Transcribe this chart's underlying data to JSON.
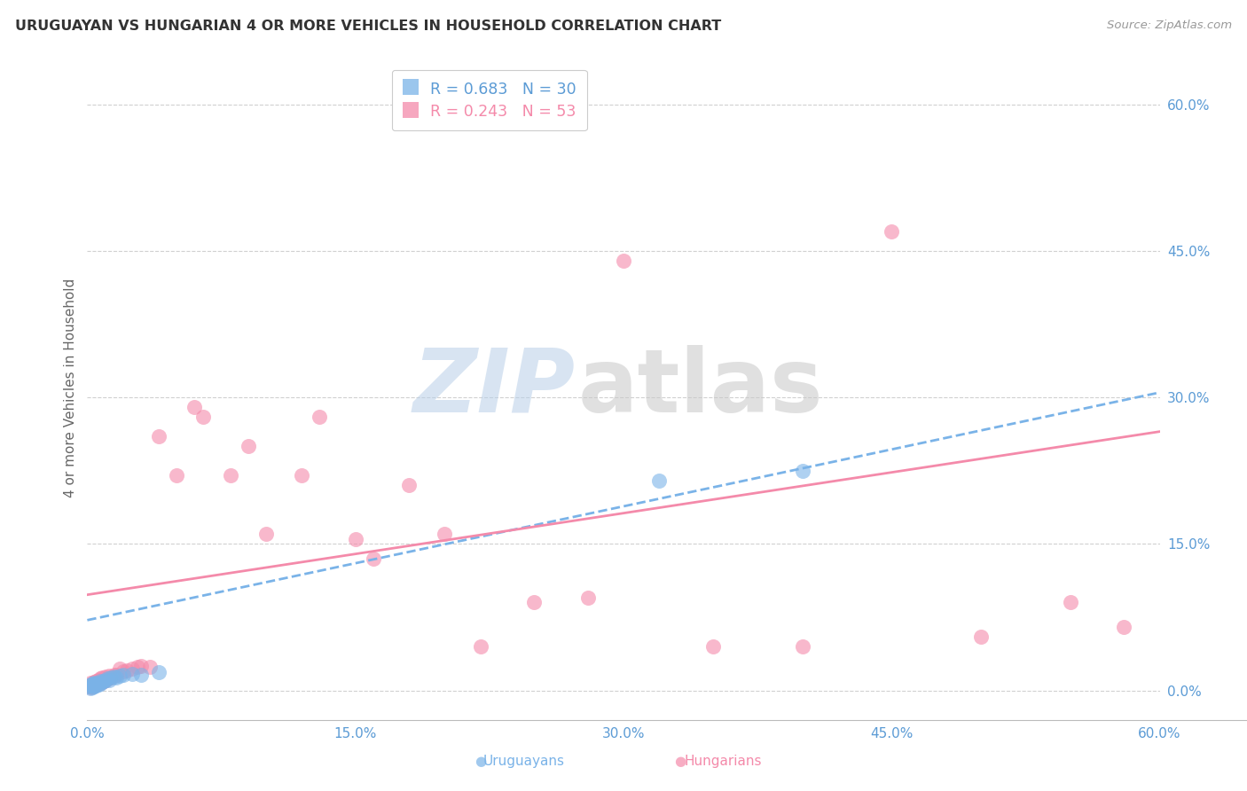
{
  "title": "URUGUAYAN VS HUNGARIAN 4 OR MORE VEHICLES IN HOUSEHOLD CORRELATION CHART",
  "source": "Source: ZipAtlas.com",
  "ylabel": "4 or more Vehicles in Household",
  "xmin": 0.0,
  "xmax": 0.6,
  "ymin": -0.03,
  "ymax": 0.65,
  "yticks": [
    0.0,
    0.15,
    0.3,
    0.45,
    0.6
  ],
  "ytick_labels": [
    "0.0%",
    "15.0%",
    "30.0%",
    "45.0%",
    "60.0%"
  ],
  "xticks": [
    0.0,
    0.15,
    0.3,
    0.45,
    0.6
  ],
  "xtick_labels": [
    "0.0%",
    "15.0%",
    "30.0%",
    "45.0%",
    "60.0%"
  ],
  "grid_color": "#d0d0d0",
  "background_color": "#ffffff",
  "uruguayan_color": "#7ab3e8",
  "hungarian_color": "#f48aaa",
  "uruguayan_R": 0.683,
  "uruguayan_N": 30,
  "hungarian_R": 0.243,
  "hungarian_N": 53,
  "legend_label_uruguayan": "Uruguayans",
  "legend_label_hungarian": "Hungarians",
  "watermark_zip": "ZIP",
  "watermark_atlas": "atlas",
  "title_color": "#333333",
  "axis_label_color": "#5b9bd5",
  "uruguayan_x": [
    0.001,
    0.002,
    0.002,
    0.003,
    0.003,
    0.003,
    0.004,
    0.004,
    0.004,
    0.005,
    0.005,
    0.006,
    0.006,
    0.007,
    0.007,
    0.008,
    0.009,
    0.01,
    0.011,
    0.012,
    0.013,
    0.015,
    0.016,
    0.018,
    0.02,
    0.025,
    0.03,
    0.04,
    0.32,
    0.4
  ],
  "uruguayan_y": [
    0.004,
    0.002,
    0.006,
    0.003,
    0.005,
    0.007,
    0.004,
    0.006,
    0.008,
    0.005,
    0.007,
    0.006,
    0.008,
    0.007,
    0.01,
    0.009,
    0.01,
    0.011,
    0.012,
    0.011,
    0.013,
    0.014,
    0.013,
    0.015,
    0.016,
    0.017,
    0.016,
    0.019,
    0.215,
    0.225
  ],
  "hungarian_x": [
    0.001,
    0.002,
    0.002,
    0.003,
    0.003,
    0.004,
    0.004,
    0.005,
    0.005,
    0.006,
    0.006,
    0.007,
    0.007,
    0.008,
    0.008,
    0.009,
    0.01,
    0.01,
    0.011,
    0.012,
    0.013,
    0.015,
    0.016,
    0.018,
    0.02,
    0.022,
    0.025,
    0.028,
    0.03,
    0.035,
    0.04,
    0.05,
    0.06,
    0.065,
    0.08,
    0.09,
    0.1,
    0.12,
    0.13,
    0.15,
    0.16,
    0.18,
    0.2,
    0.22,
    0.25,
    0.28,
    0.3,
    0.35,
    0.4,
    0.45,
    0.5,
    0.55,
    0.58
  ],
  "hungarian_y": [
    0.005,
    0.003,
    0.008,
    0.004,
    0.007,
    0.005,
    0.009,
    0.006,
    0.01,
    0.007,
    0.011,
    0.008,
    0.012,
    0.009,
    0.013,
    0.01,
    0.011,
    0.014,
    0.012,
    0.015,
    0.013,
    0.016,
    0.016,
    0.022,
    0.02,
    0.021,
    0.022,
    0.024,
    0.025,
    0.024,
    0.26,
    0.22,
    0.29,
    0.28,
    0.22,
    0.25,
    0.16,
    0.22,
    0.28,
    0.155,
    0.135,
    0.21,
    0.16,
    0.045,
    0.09,
    0.095,
    0.44,
    0.045,
    0.045,
    0.47,
    0.055,
    0.09,
    0.065
  ],
  "trend_uruguayan_x0": 0.0,
  "trend_uruguayan_y0": 0.072,
  "trend_uruguayan_x1": 0.6,
  "trend_uruguayan_y1": 0.305,
  "trend_hungarian_x0": 0.0,
  "trend_hungarian_y0": 0.098,
  "trend_hungarian_x1": 0.6,
  "trend_hungarian_y1": 0.265
}
